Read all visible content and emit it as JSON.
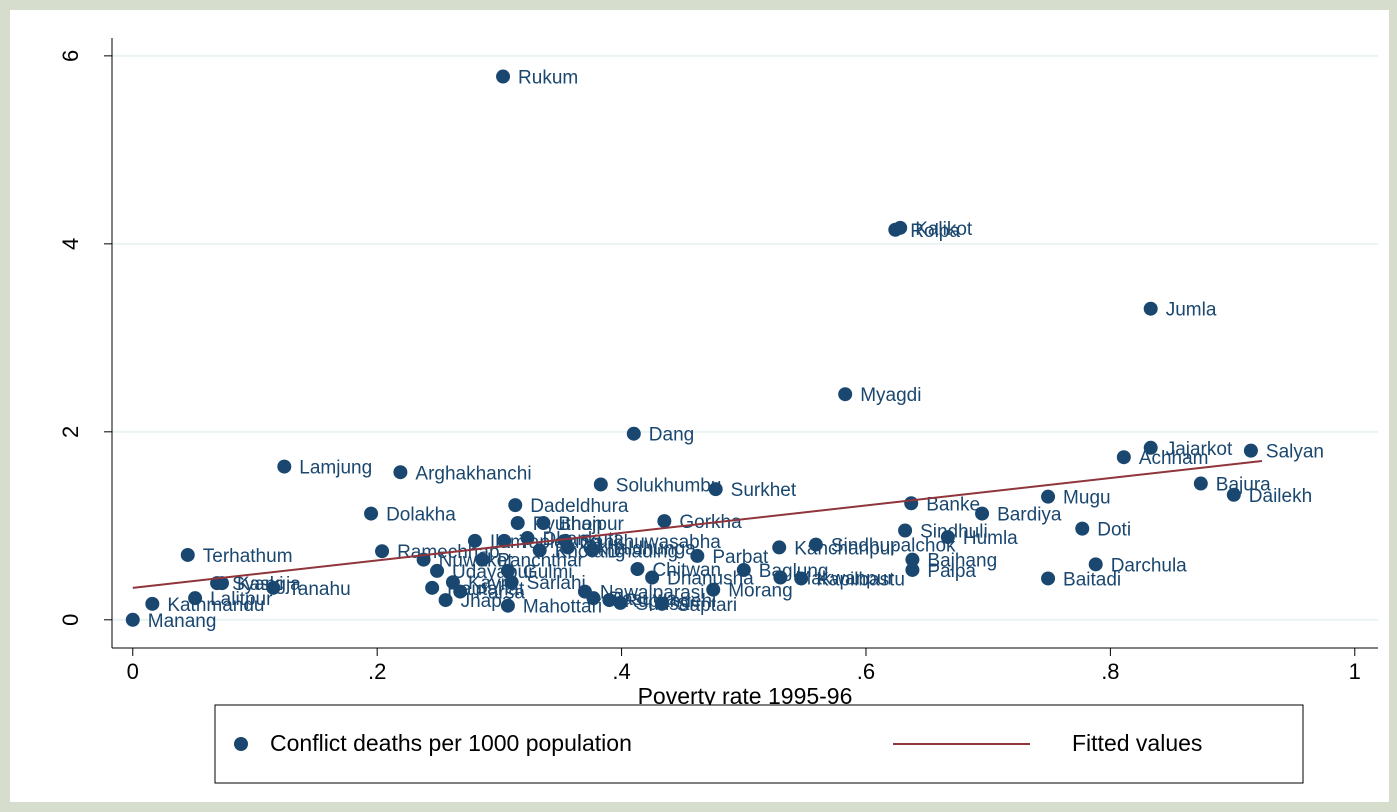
{
  "chart_data": {
    "type": "scatter",
    "xlabel": "Poverty rate 1995-96",
    "xlim": [
      -0.017,
      1.019
    ],
    "ylim": [
      -0.3,
      6.19
    ],
    "xticks": [
      0,
      {
        "value": 0.2,
        "label": ".2"
      },
      {
        "value": 0.4,
        "label": ".4"
      },
      {
        "value": 0.6,
        "label": ".6"
      },
      {
        "value": 0.8,
        "label": ".8"
      },
      1
    ],
    "yticks": [
      0,
      2,
      4,
      6
    ],
    "grid": true,
    "legend": "bottom",
    "series": [
      {
        "name": "Conflict deaths per 1000 population",
        "color": "#1a476f",
        "labels": [
          "Rukum",
          "Kalikot",
          "Rolpa",
          "Jumla",
          "Myagdi",
          "Dang",
          "Jajarkot",
          "Salyan",
          "Achham",
          "Lamjung",
          "Arghakhanchi",
          "Bajura",
          "Solukhumbu",
          "Surkhet",
          "Dailekh",
          "Mugu",
          "Banke",
          "Dadeldhura",
          "Dolakha",
          "Bardiya",
          "Gorkha",
          "Bhojpur",
          "Pyuthan",
          "Doti",
          "Sindhuli",
          "Humla",
          "Dhankuta",
          "Sankhuwasabha",
          "Ilam",
          "Taplejung",
          "Sindhupalchok",
          "Kanchanpur",
          "Ramechhap",
          "Okhaldhunga",
          "Dhading",
          "Khotang",
          "Terhathum",
          "Parbat",
          "Nuwakot",
          "Panchthar",
          "Bajhang",
          "Darchula",
          "Chitwan",
          "Baglung",
          "Palpa",
          "Udayapur",
          "Gulmi",
          "Kavre",
          "Dhanusha",
          "Makwanpur",
          "Kapilbastu",
          "Baitadi",
          "Syangja",
          "Kaski",
          "Rautahat",
          "Sarlahi",
          "Nawalparasi",
          "Morang",
          "Tanahu",
          "Parsa",
          "Lalitpur",
          "Rasuwa",
          "Rupandehi",
          "Jhapa",
          "Sunsari",
          "Saptari",
          "Kathmandu",
          "Mahottari",
          "Manang"
        ],
        "x": [
          0.303,
          0.628,
          0.624,
          0.833,
          0.583,
          0.41,
          0.833,
          0.915,
          0.811,
          0.124,
          0.219,
          0.874,
          0.383,
          0.477,
          0.901,
          0.749,
          0.637,
          0.313,
          0.195,
          0.695,
          0.435,
          0.336,
          0.315,
          0.777,
          0.632,
          0.667,
          0.323,
          0.354,
          0.28,
          0.304,
          0.559,
          0.529,
          0.204,
          0.356,
          0.376,
          0.333,
          0.045,
          0.462,
          0.238,
          0.286,
          0.638,
          0.788,
          0.413,
          0.5,
          0.638,
          0.249,
          0.307,
          0.262,
          0.425,
          0.53,
          0.547,
          0.749,
          0.069,
          0.073,
          0.245,
          0.31,
          0.37,
          0.475,
          0.115,
          0.268,
          0.051,
          0.377,
          0.39,
          0.256,
          0.399,
          0.433,
          0.016,
          0.307,
          0
        ],
        "values": [
          5.78,
          4.17,
          4.15,
          3.31,
          2.4,
          1.98,
          1.83,
          1.8,
          1.73,
          1.63,
          1.57,
          1.45,
          1.44,
          1.39,
          1.33,
          1.31,
          1.24,
          1.22,
          1.13,
          1.13,
          1.05,
          1.03,
          1.03,
          0.97,
          0.95,
          0.88,
          0.87,
          0.84,
          0.84,
          0.84,
          0.8,
          0.77,
          0.73,
          0.77,
          0.74,
          0.74,
          0.69,
          0.68,
          0.64,
          0.64,
          0.64,
          0.59,
          0.54,
          0.53,
          0.53,
          0.52,
          0.52,
          0.4,
          0.45,
          0.45,
          0.44,
          0.44,
          0.39,
          0.39,
          0.34,
          0.4,
          0.3,
          0.32,
          0.34,
          0.3,
          0.23,
          0.23,
          0.21,
          0.21,
          0.18,
          0.17,
          0.17,
          0.15,
          0
        ]
      },
      {
        "name": "Fitted values",
        "color": "#90353b",
        "type": "line",
        "x": [
          0,
          0.924
        ],
        "values": [
          0.34,
          1.69
        ]
      }
    ]
  }
}
